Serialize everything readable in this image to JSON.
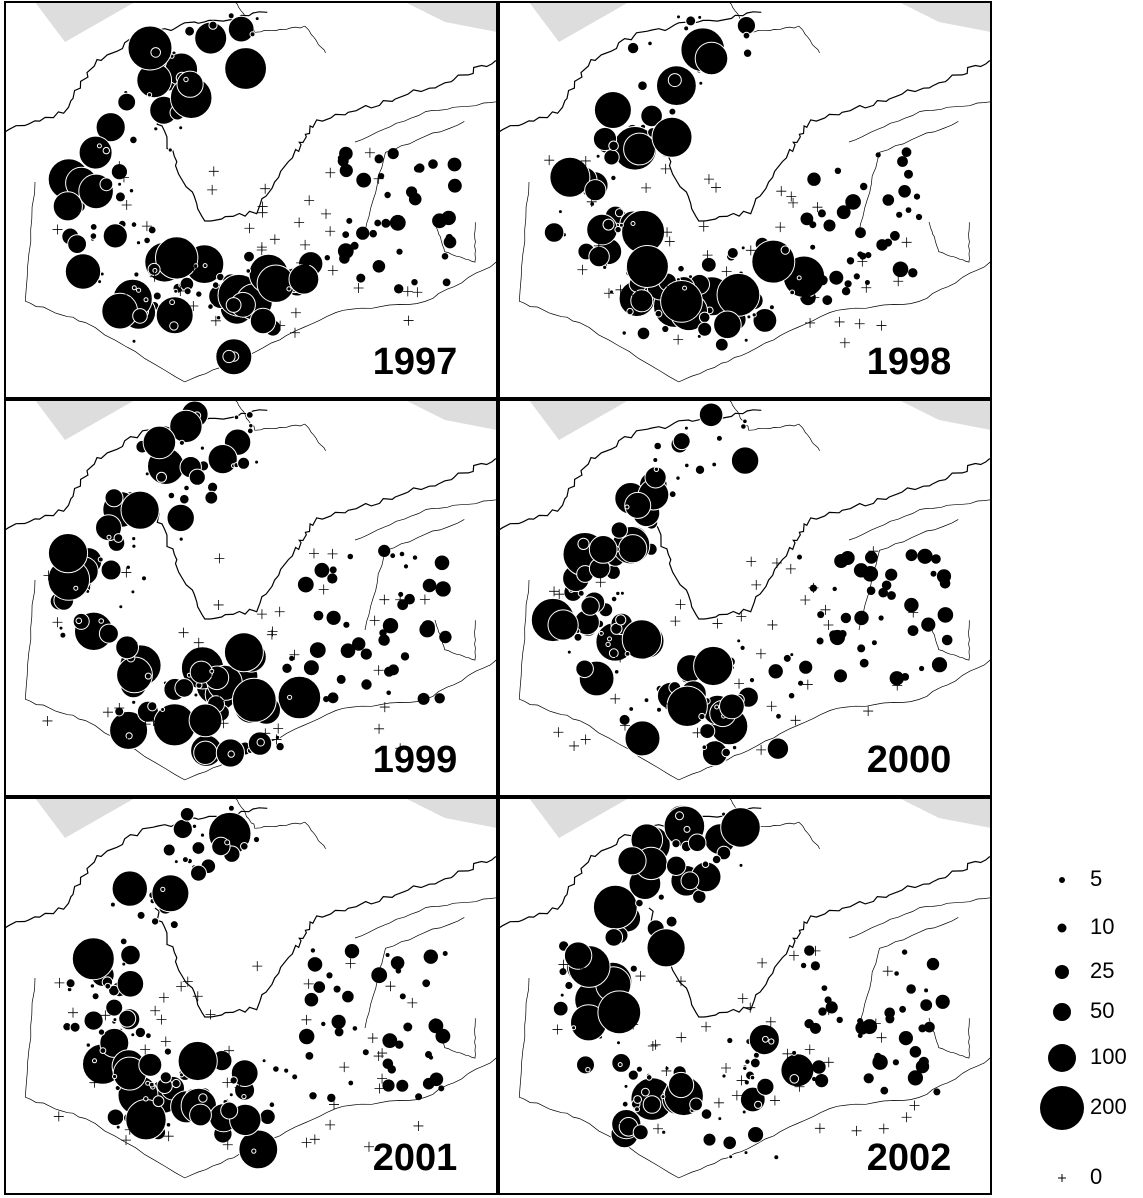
{
  "panels": [
    {
      "year": "1997"
    },
    {
      "year": "1998"
    },
    {
      "year": "1999"
    },
    {
      "year": "2000"
    },
    {
      "year": "2001"
    },
    {
      "year": "2002"
    }
  ],
  "legend": {
    "items": [
      {
        "label": "5"
      },
      {
        "label": "10"
      },
      {
        "label": "25"
      },
      {
        "label": "50"
      },
      {
        "label": "100"
      },
      {
        "label": "200"
      },
      {
        "label": "0"
      }
    ]
  }
}
